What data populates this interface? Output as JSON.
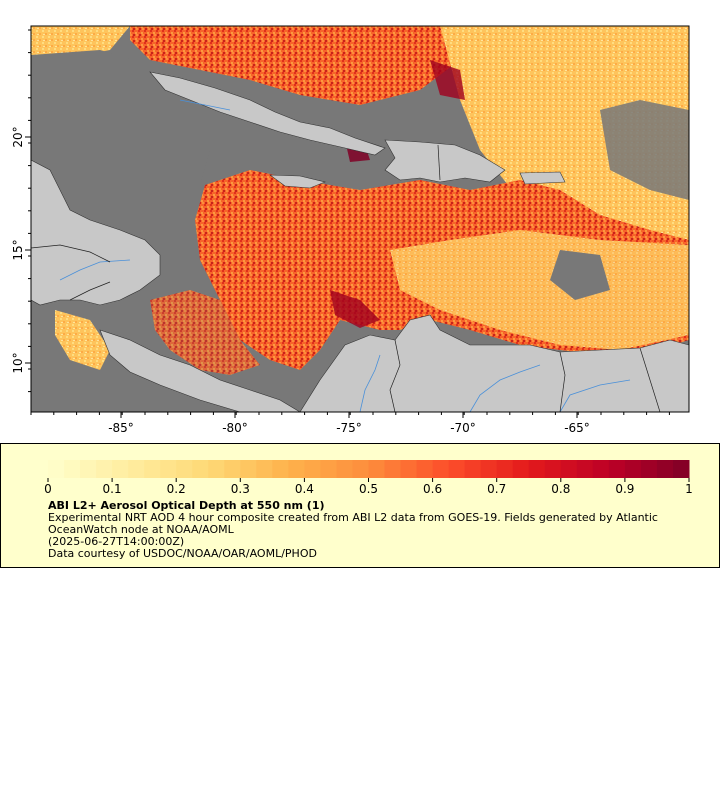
{
  "map": {
    "lon_ticks": [
      "-85°",
      "-80°",
      "-75°",
      "-70°",
      "-65°"
    ],
    "lat_ticks": [
      "20°",
      "15°",
      "10°"
    ],
    "colors": {
      "ocean_nodata": "#787878",
      "land": "#c8c8c8",
      "borders": "#222222",
      "rivers": "#4a90d9",
      "frame": "#000000"
    }
  },
  "colorbar": {
    "tick_labels": [
      "0",
      "0.1",
      "0.2",
      "0.3",
      "0.4",
      "0.5",
      "0.6",
      "0.7",
      "0.8",
      "0.9",
      "1"
    ],
    "min": 0,
    "max": 1,
    "palette": [
      "#ffffcc",
      "#ffeda0",
      "#fed976",
      "#feb24c",
      "#fd8d3c",
      "#fc4e2a",
      "#e31a1c",
      "#bd0026",
      "#800026"
    ]
  },
  "info": {
    "title": "ABI L2+ Aerosol Optical Depth at 550 nm (1)",
    "line1": "Experimental NRT AOD 4 hour composite created from ABI L2 data from GOES-19. Fields generated by Atlantic OceanWatch node at NOAA/AOML",
    "line2": "(2025-06-27T14:00:00Z)",
    "line3": "Data courtesy of USDOC/NOAA/OAR/AOML/PHOD"
  }
}
